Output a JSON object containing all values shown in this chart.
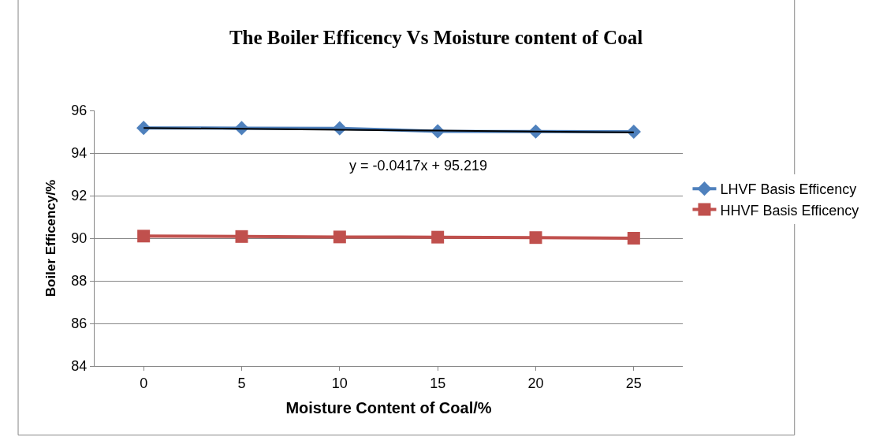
{
  "chart_data": {
    "type": "line",
    "title": "The Boiler Efficency Vs Moisture content of Coal",
    "xlabel": "Moisture Content of Coal/%",
    "ylabel": "Boiler Efficency/%",
    "categories": [
      "0",
      "5",
      "10",
      "15",
      "20",
      "25"
    ],
    "series": [
      {
        "name": "LHVF Basis Efficency",
        "color": "#4f81bd",
        "marker": "diamond",
        "values": [
          95.18,
          95.17,
          95.16,
          95.02,
          95.01,
          95.0
        ]
      },
      {
        "name": "HHVF Basis Efficency",
        "color": "#c0504d",
        "marker": "square",
        "values": [
          90.1,
          90.08,
          90.06,
          90.05,
          90.03,
          90.0
        ]
      },
      {
        "color": "#000000",
        "marker": "none",
        "values": [
          95.177,
          95.136,
          95.094,
          95.052,
          95.011,
          94.969
        ]
      }
    ],
    "annotations": [
      "y = -0.0417x + 95.219"
    ],
    "ylim": [
      84,
      96
    ],
    "yticks": [
      84,
      86,
      88,
      90,
      92,
      94,
      96
    ],
    "grid": "y",
    "legend": "right"
  }
}
